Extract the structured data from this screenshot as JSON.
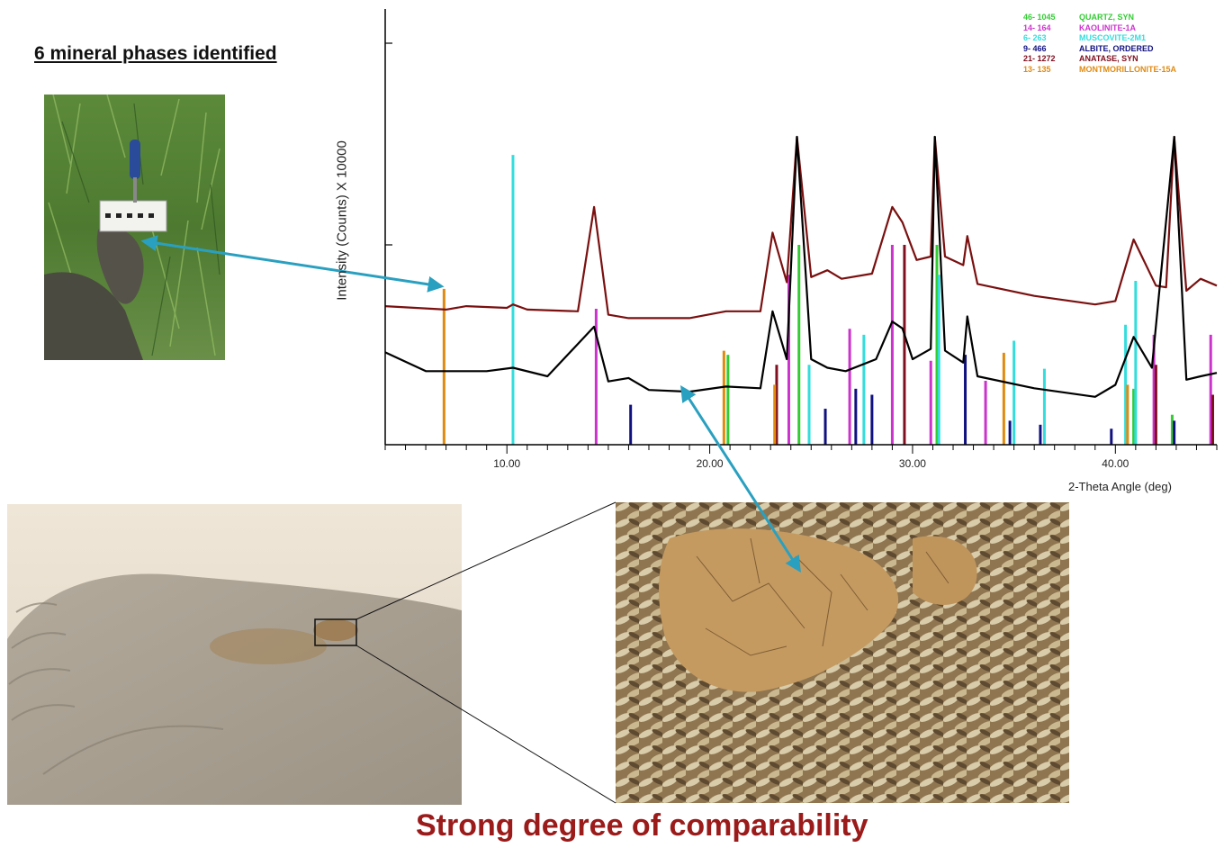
{
  "heading": "6 mineral phases identified",
  "conclusion": "Strong degree of comparability",
  "colors": {
    "quartz": "#33cc33",
    "kaolinite": "#cc33cc",
    "muscovite": "#33dddd",
    "albite": "#101080",
    "anatase": "#801020",
    "montmorillonite": "#e08a10",
    "trace_soil": "#7a1010",
    "trace_sock": "#000000",
    "arrow": "#2aa0c0",
    "conclusion": "#9b1a1a"
  },
  "chart_data": {
    "type": "line",
    "ylabel": "Intensity (Counts) X 10000",
    "xlabel": "2-Theta Angle (deg)",
    "xlim": [
      4,
      45
    ],
    "x_ticks": [
      "10.00",
      "20.00",
      "30.00",
      "40.00"
    ],
    "series": [
      {
        "name": "",
        "points": [
          [
            4,
            0.81
          ],
          [
            7,
            0.79
          ],
          [
            8,
            0.81
          ],
          [
            10,
            0.8
          ],
          [
            10.3,
            0.82
          ],
          [
            11,
            0.79
          ],
          [
            13.5,
            0.78
          ],
          [
            14.3,
            1.39
          ],
          [
            15,
            0.76
          ],
          [
            16,
            0.74
          ],
          [
            19,
            0.74
          ],
          [
            20.8,
            0.78
          ],
          [
            22.5,
            0.78
          ],
          [
            23.1,
            1.24
          ],
          [
            23.8,
            0.95
          ],
          [
            24.3,
            1.8
          ],
          [
            25,
            0.98
          ],
          [
            25.8,
            1.02
          ],
          [
            26.5,
            0.97
          ],
          [
            28,
            1.0
          ],
          [
            29,
            1.39
          ],
          [
            29.5,
            1.3
          ],
          [
            30.2,
            1.08
          ],
          [
            30.9,
            1.1
          ],
          [
            31.1,
            1.8
          ],
          [
            31.6,
            1.1
          ],
          [
            32.5,
            1.05
          ],
          [
            32.7,
            1.22
          ],
          [
            33.2,
            0.94
          ],
          [
            36,
            0.87
          ],
          [
            39,
            0.82
          ],
          [
            40,
            0.84
          ],
          [
            40.9,
            1.2
          ],
          [
            42,
            0.93
          ],
          [
            42.5,
            0.92
          ],
          [
            42.9,
            1.8
          ],
          [
            43.5,
            0.9
          ],
          [
            44.2,
            0.97
          ],
          [
            45,
            0.93
          ]
        ]
      },
      {
        "name": "",
        "points": [
          [
            4,
            0.54
          ],
          [
            6,
            0.43
          ],
          [
            9,
            0.43
          ],
          [
            10.3,
            0.45
          ],
          [
            12,
            0.4
          ],
          [
            14.3,
            0.69
          ],
          [
            15,
            0.37
          ],
          [
            16,
            0.39
          ],
          [
            17,
            0.32
          ],
          [
            19,
            0.31
          ],
          [
            20.8,
            0.34
          ],
          [
            22.5,
            0.33
          ],
          [
            23.1,
            0.78
          ],
          [
            23.8,
            0.5
          ],
          [
            24.3,
            1.8
          ],
          [
            25,
            0.5
          ],
          [
            25.8,
            0.45
          ],
          [
            26.7,
            0.43
          ],
          [
            28.2,
            0.5
          ],
          [
            29,
            0.72
          ],
          [
            29.5,
            0.68
          ],
          [
            30,
            0.5
          ],
          [
            30.9,
            0.56
          ],
          [
            31.1,
            1.8
          ],
          [
            31.6,
            0.55
          ],
          [
            32.5,
            0.48
          ],
          [
            32.7,
            0.75
          ],
          [
            33.2,
            0.4
          ],
          [
            36,
            0.33
          ],
          [
            39,
            0.28
          ],
          [
            40,
            0.35
          ],
          [
            40.9,
            0.63
          ],
          [
            41.8,
            0.45
          ],
          [
            42.9,
            1.8
          ],
          [
            43.5,
            0.38
          ],
          [
            44.2,
            0.4
          ],
          [
            45,
            0.42
          ]
        ]
      }
    ],
    "reference_patterns": [
      {
        "code": "46- 1045",
        "name": "QUARTZ, SYN",
        "color": "#33cc33",
        "peaks": [
          [
            20.9,
            0.45
          ],
          [
            24.4,
            1.0
          ],
          [
            31.2,
            1.0
          ],
          [
            40.9,
            0.28
          ],
          [
            42.8,
            0.15
          ]
        ]
      },
      {
        "code": "14- 164",
        "name": "KAOLINITE-1A",
        "color": "#cc33cc",
        "peaks": [
          [
            14.4,
            0.68
          ],
          [
            23.9,
            0.85
          ],
          [
            26.9,
            0.58
          ],
          [
            29.0,
            1.0
          ],
          [
            30.9,
            0.42
          ],
          [
            33.6,
            0.32
          ],
          [
            41.9,
            0.55
          ],
          [
            44.7,
            0.55
          ]
        ]
      },
      {
        "code": "6- 263",
        "name": "MUSCOVITE-2M1",
        "color": "#33dddd",
        "peaks": [
          [
            10.3,
            1.45
          ],
          [
            24.9,
            0.4
          ],
          [
            27.6,
            0.55
          ],
          [
            31.3,
            0.85
          ],
          [
            35.0,
            0.52
          ],
          [
            36.5,
            0.38
          ],
          [
            40.5,
            0.6
          ],
          [
            41.0,
            0.82
          ]
        ]
      },
      {
        "code": "9- 466",
        "name": "ALBITE, ORDERED",
        "color": "#101080",
        "peaks": [
          [
            16.1,
            0.2
          ],
          [
            25.7,
            0.18
          ],
          [
            27.2,
            0.28
          ],
          [
            28.0,
            0.25
          ],
          [
            32.6,
            0.45
          ],
          [
            34.8,
            0.12
          ],
          [
            36.3,
            0.1
          ],
          [
            39.8,
            0.08
          ],
          [
            42.9,
            0.12
          ]
        ]
      },
      {
        "code": "21- 1272",
        "name": "ANATASE, SYN",
        "color": "#801020",
        "peaks": [
          [
            23.3,
            0.4
          ],
          [
            29.6,
            1.0
          ],
          [
            42.0,
            0.4
          ],
          [
            44.8,
            0.25
          ]
        ]
      },
      {
        "code": "13- 135",
        "name": "MONTMORILLONITE-15A",
        "color": "#e08a10",
        "peaks": [
          [
            6.9,
            0.78
          ],
          [
            20.7,
            0.47
          ],
          [
            23.2,
            0.3
          ],
          [
            34.5,
            0.46
          ],
          [
            40.6,
            0.3
          ]
        ]
      }
    ]
  }
}
